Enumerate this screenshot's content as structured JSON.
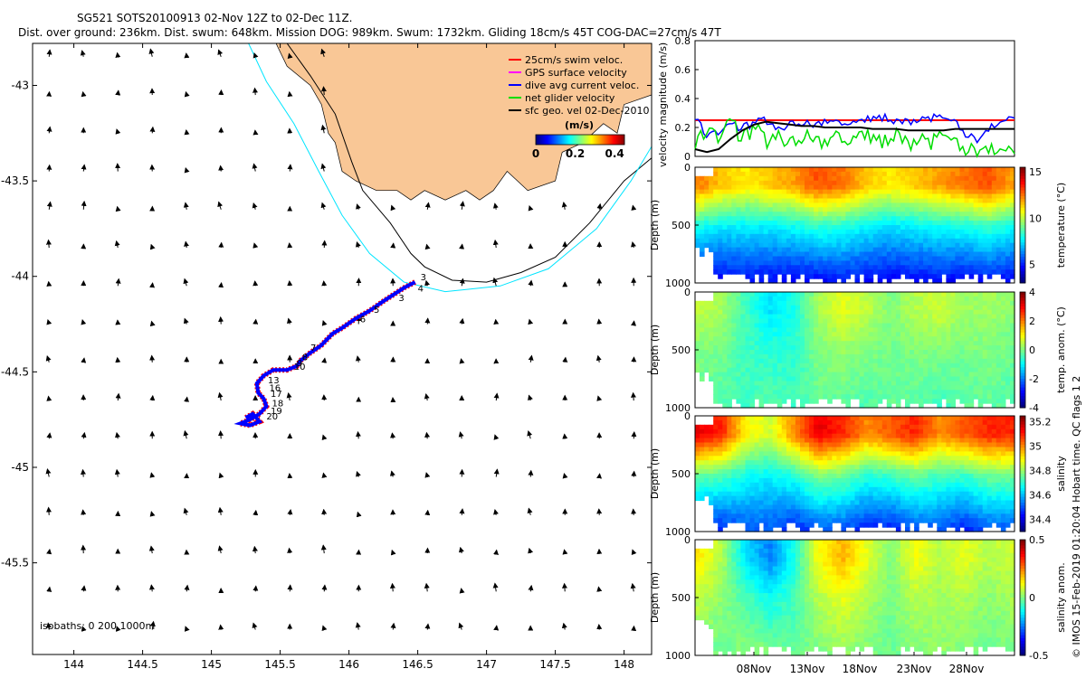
{
  "header": {
    "line1": "SG521 SOTS20100913 02-Nov 12Z to 02-Dec 11Z.",
    "line2": "Dist. over ground: 236km. Dist. swum: 648km. Mission DOG: 989km. Swum: 1732km. Gliding 18cm/s 45T COG-DAC=27cm/s 47T"
  },
  "chart_data": [
    {
      "type": "map",
      "title": "glider track and geostrophic velocity",
      "xlim": [
        143.7,
        148.2
      ],
      "ylim": [
        -45.98,
        -42.78
      ],
      "xticks": [
        144,
        144.5,
        145,
        145.5,
        146,
        146.5,
        147,
        147.5,
        148
      ],
      "xtick_labels": [
        "144",
        "144.5",
        "145",
        "145.5",
        "146",
        "146.5",
        "147",
        "147.5",
        "148"
      ],
      "yticks": [
        -43,
        -43.5,
        -44,
        -44.5,
        -45,
        -45.5
      ],
      "ytick_labels": [
        "-43",
        "-43.5",
        "-44",
        "-44.5",
        "-45",
        "-45.5"
      ],
      "isobath_label": "isobaths: 0   200  1000m",
      "legend": [
        {
          "label": "25cm/s swim veloc.",
          "color": "#ff0000"
        },
        {
          "label": "GPS surface velocity",
          "color": "#ff00ff"
        },
        {
          "label": "dive avg current veloc.",
          "color": "#0000ff"
        },
        {
          "label": "net glider velocity",
          "color": "#00dd00"
        },
        {
          "label": "sfc geo. vel 02-Dec-2010",
          "color": "#000000"
        }
      ],
      "colorbar": {
        "label": "(m/s)",
        "ticks": [
          0,
          0.2,
          0.4
        ],
        "tick_labels": [
          "0",
          "0.2",
          "0.4"
        ],
        "range": [
          0,
          0.45
        ]
      },
      "day_labels": [
        "3",
        "3",
        "4",
        "5",
        "6",
        "7",
        "8",
        "9",
        "10",
        "13",
        "16",
        "17",
        "18",
        "19",
        "20"
      ],
      "track": [
        [
          146.48,
          -44.03
        ],
        [
          146.4,
          -44.06
        ],
        [
          146.25,
          -44.13
        ],
        [
          146.15,
          -44.18
        ],
        [
          146.05,
          -44.22
        ],
        [
          145.95,
          -44.27
        ],
        [
          145.88,
          -44.3
        ],
        [
          145.8,
          -44.36
        ],
        [
          145.72,
          -44.4
        ],
        [
          145.65,
          -44.44
        ],
        [
          145.62,
          -44.47
        ],
        [
          145.55,
          -44.49
        ],
        [
          145.45,
          -44.49
        ],
        [
          145.38,
          -44.52
        ],
        [
          145.33,
          -44.56
        ],
        [
          145.34,
          -44.61
        ],
        [
          145.38,
          -44.64
        ],
        [
          145.4,
          -44.68
        ],
        [
          145.35,
          -44.72
        ],
        [
          145.28,
          -44.75
        ],
        [
          145.21,
          -44.77
        ],
        [
          145.28,
          -44.78
        ],
        [
          145.35,
          -44.76
        ],
        [
          145.3,
          -44.72
        ],
        [
          145.25,
          -44.74
        ]
      ]
    },
    {
      "type": "line",
      "ylabel": "velocity magnitude (m/s)",
      "ylim": [
        0,
        0.8
      ],
      "yticks": [
        0,
        0.2,
        0.4,
        0.6,
        0.8
      ],
      "ytick_labels": [
        "0",
        "0.2",
        "0.4",
        "0.6",
        "0.8"
      ],
      "series": [
        {
          "name": "25cm/s swim veloc.",
          "color": "#ff0000",
          "values": [
            0.25,
            0.25
          ]
        },
        {
          "name": "dive avg current veloc.",
          "color": "#0000ff",
          "values": [
            0.28,
            0.15,
            0.18,
            0.22,
            0.2,
            0.23,
            0.25,
            0.2,
            0.22,
            0.24,
            0.21,
            0.25,
            0.26,
            0.22,
            0.24,
            0.26,
            0.27,
            0.25,
            0.24,
            0.26,
            0.27,
            0.25,
            0.23,
            0.15,
            0.12,
            0.2,
            0.25,
            0.28
          ]
        },
        {
          "name": "net glider velocity",
          "color": "#00dd00",
          "values": [
            0.1,
            0.2,
            0.15,
            0.25,
            0.12,
            0.2,
            0.1,
            0.18,
            0.08,
            0.15,
            0.12,
            0.1,
            0.2,
            0.08,
            0.15,
            0.12,
            0.1,
            0.18,
            0.08,
            0.14,
            0.1,
            0.12,
            0.08,
            0.06,
            0.05,
            0.04,
            0.06,
            0.05
          ]
        },
        {
          "name": "sfc geo. vel",
          "color": "#000000",
          "values": [
            0.05,
            0.03,
            0.05,
            0.12,
            0.18,
            0.22,
            0.24,
            0.23,
            0.22,
            0.21,
            0.21,
            0.2,
            0.2,
            0.2,
            0.2,
            0.19,
            0.19,
            0.19,
            0.18,
            0.18,
            0.18,
            0.18,
            0.19,
            0.19,
            0.19,
            0.19,
            0.19,
            0.19
          ]
        }
      ]
    },
    {
      "type": "heatmap",
      "panels": [
        {
          "name": "temperature",
          "cblabel": "temperature (°C)",
          "ylabel": "Depth (m)",
          "ytick_labels": [
            "0",
            "500",
            "1000"
          ],
          "cb_ticks": [
            5,
            10,
            15
          ],
          "cb_tick_labels": [
            "5",
            "10",
            "15"
          ],
          "range": [
            3,
            15.5
          ],
          "surface": [
            12.5,
            11.5,
            11,
            11.5,
            12,
            13,
            12.5,
            11.5,
            11,
            11.5,
            12,
            12.5,
            13,
            12
          ],
          "deep": [
            4.5,
            4.5,
            4.8,
            4.6,
            4.5,
            4.6,
            4.8,
            4.6,
            4.5,
            4.6,
            4.7,
            4.5,
            4.8,
            4.6
          ]
        },
        {
          "name": "temp-anomaly",
          "cblabel": "temp. anom. (°C)",
          "ylabel": "Depth (m)",
          "ytick_labels": [
            "0",
            "500",
            "1000"
          ],
          "cb_ticks": [
            4,
            2,
            0,
            -2,
            -4
          ],
          "cb_tick_labels": [
            "4",
            "2",
            "0",
            "-2",
            "-4"
          ],
          "range": [
            -4,
            4
          ],
          "surface": [
            0.5,
            0.3,
            -0.5,
            -1.2,
            -0.8,
            0.3,
            0.8,
            0.5,
            0,
            0.4,
            0.6,
            0.2,
            0.3,
            0.1
          ],
          "deep": [
            -0.3,
            -0.4,
            -0.5,
            -0.3,
            -0.5,
            -0.2,
            -0.3,
            -0.4,
            -0.2,
            -0.3,
            -0.5,
            -0.3,
            -0.2,
            -0.4
          ]
        },
        {
          "name": "salinity",
          "cblabel": "salinity",
          "ylabel": "Depth (m)",
          "ytick_labels": [
            "0",
            "500",
            "1000"
          ],
          "cb_ticks": [
            35.2,
            35,
            34.8,
            34.6,
            34.4
          ],
          "cb_tick_labels": [
            "35.2",
            "35",
            "34.8",
            "34.6",
            "34.4"
          ],
          "range": [
            34.3,
            35.25
          ],
          "surface": [
            35.15,
            35.1,
            34.9,
            34.85,
            35.0,
            35.15,
            35.1,
            35.0,
            35.05,
            35.1,
            35.0,
            35.05,
            35.1,
            35.1
          ],
          "deep": [
            34.45,
            34.45,
            34.5,
            34.5,
            34.45,
            34.5,
            34.5,
            34.45,
            34.45,
            34.5,
            34.5,
            34.45,
            34.5,
            34.5
          ]
        },
        {
          "name": "salinity-anomaly",
          "cblabel": "salinity anom.",
          "ylabel": "Depth (m)",
          "ytick_labels": [
            "0",
            "500",
            "1000"
          ],
          "cb_ticks": [
            0.5,
            0,
            -0.5
          ],
          "cb_tick_labels": [
            "0.5",
            "0",
            "-0.5"
          ],
          "range": [
            -0.5,
            0.5
          ],
          "surface": [
            0.15,
            0.05,
            -0.15,
            -0.25,
            -0.1,
            0.12,
            0.2,
            0.1,
            0,
            0.12,
            0.05,
            0.1,
            0.05,
            0.08
          ],
          "deep": [
            0.0,
            -0.02,
            0.02,
            0.0,
            -0.03,
            0.0,
            0.02,
            0.0,
            -0.02,
            0.0,
            0.02,
            0.0,
            -0.02,
            0.0
          ]
        }
      ],
      "xtick_labels": [
        "08Nov",
        "13Nov",
        "18Nov",
        "23Nov",
        "28Nov"
      ],
      "side_note": "© IMOS 15-Feb-2019 01:20:04 Hobart time. QC flags 1  2"
    }
  ]
}
